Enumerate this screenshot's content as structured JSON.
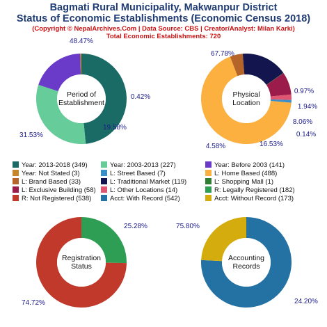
{
  "header": {
    "title_line1": "Bagmati Rural Municipality, Makwanpur District",
    "title_line2": "Status of Economic Establishments (Economic Census 2018)",
    "credit": "(Copyright © NepalArchives.Com | Data Source: CBS | Creator/Analyst: Milan Karki)",
    "total": "Total Economic Establishments: 720"
  },
  "chart_data": [
    {
      "type": "pie",
      "center_label": [
        "Period of",
        "Establishment"
      ],
      "slices": [
        {
          "label": "Year: 2013-2018",
          "value": 349,
          "pct_label": "48.47%",
          "color": "#1a6b66"
        },
        {
          "label": "Year: 2003-2013",
          "value": 227,
          "pct_label": "31.53%",
          "color": "#66cc99"
        },
        {
          "label": "Year: Before 2003",
          "value": 141,
          "pct_label": "19.58%",
          "color": "#6a3ac9"
        },
        {
          "label": "Year: Not Stated",
          "value": 3,
          "pct_label": "0.42%",
          "color": "#c8862a"
        }
      ]
    },
    {
      "type": "pie",
      "center_label": [
        "Physical",
        "Location"
      ],
      "slices": [
        {
          "label": "L: Home Based",
          "value": 488,
          "pct_label": "67.78%",
          "color": "#fbb040"
        },
        {
          "label": "L: Brand Based",
          "value": 33,
          "pct_label": "4.58%",
          "color": "#b5652a"
        },
        {
          "label": "L: Traditional Market",
          "value": 119,
          "pct_label": "16.53%",
          "color": "#13154f"
        },
        {
          "label": "L: Shopping Mall",
          "value": 1,
          "pct_label": "0.14%",
          "color": "#2e7d32"
        },
        {
          "label": "L: Exclusive Building",
          "value": 58,
          "pct_label": "8.06%",
          "color": "#9b1b4a"
        },
        {
          "label": "L: Other Locations",
          "value": 14,
          "pct_label": "1.94%",
          "color": "#e05570"
        },
        {
          "label": "L: Street Based",
          "value": 7,
          "pct_label": "0.97%",
          "color": "#3b8fc9"
        }
      ]
    },
    {
      "type": "pie",
      "center_label": [
        "Registration",
        "Status"
      ],
      "slices": [
        {
          "label": "R: Legally Registered",
          "value": 182,
          "pct_label": "25.28%",
          "color": "#2e9e55"
        },
        {
          "label": "R: Not Registered",
          "value": 538,
          "pct_label": "74.72%",
          "color": "#c0392b"
        }
      ]
    },
    {
      "type": "pie",
      "center_label": [
        "Accounting",
        "Records"
      ],
      "slices": [
        {
          "label": "Acct: With Record",
          "value": 542,
          "pct_label": "75.80%",
          "color": "#2471a3"
        },
        {
          "label": "Acct: Without Record",
          "value": 173,
          "pct_label": "24.20%",
          "color": "#d4ac0d"
        }
      ]
    }
  ],
  "legend": [
    {
      "text": "Year: 2013-2018 (349)",
      "color": "#1a6b66"
    },
    {
      "text": "Year: 2003-2013 (227)",
      "color": "#66cc99"
    },
    {
      "text": "Year: Before 2003 (141)",
      "color": "#6a3ac9"
    },
    {
      "text": "Year: Not Stated (3)",
      "color": "#c8862a"
    },
    {
      "text": "L: Street Based (7)",
      "color": "#3b8fc9"
    },
    {
      "text": "L: Home Based (488)",
      "color": "#fbb040"
    },
    {
      "text": "L: Brand Based (33)",
      "color": "#b5652a"
    },
    {
      "text": "L: Traditional Market (119)",
      "color": "#13154f"
    },
    {
      "text": "L: Shopping Mall (1)",
      "color": "#2e7d32"
    },
    {
      "text": "L: Exclusive Building (58)",
      "color": "#9b1b4a"
    },
    {
      "text": "L: Other Locations (14)",
      "color": "#e05570"
    },
    {
      "text": "R: Legally Registered (182)",
      "color": "#2e9e55"
    },
    {
      "text": "R: Not Registered (538)",
      "color": "#c0392b"
    },
    {
      "text": "Acct: With Record (542)",
      "color": "#2471a3"
    },
    {
      "text": "Acct: Without Record (173)",
      "color": "#d4ac0d"
    }
  ]
}
